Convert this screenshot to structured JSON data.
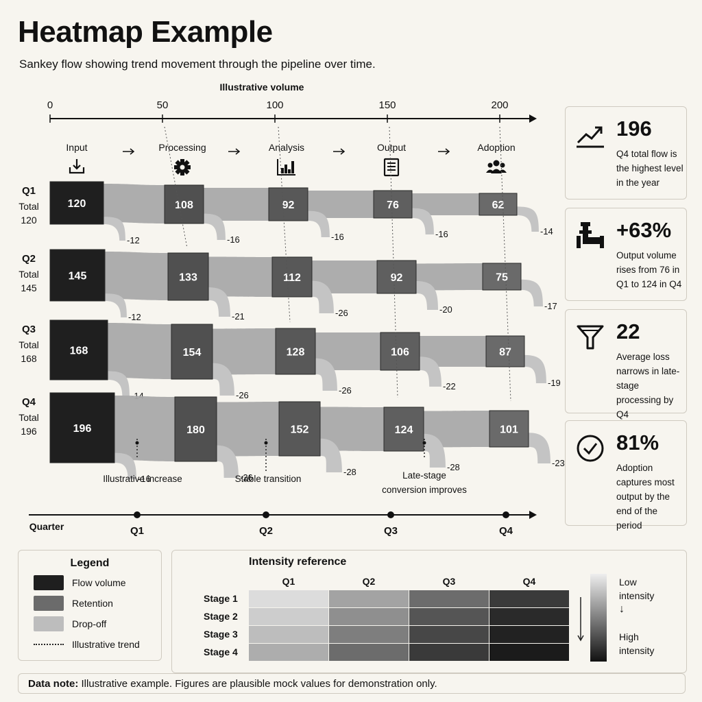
{
  "header": {
    "title": "Heatmap Example",
    "subtitle": "Sankey flow showing trend movement through the pipeline over time."
  },
  "chart_data": {
    "type": "sankey",
    "axis_title": "Illustrative volume",
    "axis_ticks": [
      0,
      50,
      100,
      150,
      200
    ],
    "xlim": [
      0,
      200
    ],
    "stages": [
      {
        "name": "Input",
        "icon": "download-icon"
      },
      {
        "name": "Processing",
        "icon": "gear-icon"
      },
      {
        "name": "Analysis",
        "icon": "bar-chart-icon"
      },
      {
        "name": "Output",
        "icon": "document-icon"
      },
      {
        "name": "Adoption",
        "icon": "people-icon"
      }
    ],
    "quarters": [
      {
        "name": "Q1",
        "total_label": "Total",
        "total": 120,
        "values": [
          120,
          108,
          92,
          76,
          62
        ],
        "losses": [
          -12,
          -16,
          -16,
          -16,
          -14
        ]
      },
      {
        "name": "Q2",
        "total_label": "Total",
        "total": 145,
        "values": [
          145,
          133,
          112,
          92,
          75
        ],
        "losses": [
          -12,
          -21,
          -26,
          -20,
          -17
        ]
      },
      {
        "name": "Q3",
        "total_label": "Total",
        "total": 168,
        "values": [
          168,
          154,
          128,
          106,
          87
        ],
        "losses": [
          -14,
          -26,
          -26,
          -22,
          -19
        ]
      },
      {
        "name": "Q4",
        "total_label": "Total",
        "total": 196,
        "values": [
          196,
          180,
          152,
          124,
          101
        ],
        "losses": [
          -16,
          -26,
          -28,
          -28,
          -23
        ]
      }
    ],
    "annotations": [
      "Illustrative increase",
      "Stable transition",
      "Late-stage conversion improves"
    ],
    "timeline": {
      "label": "Quarter",
      "points": [
        "Q1",
        "Q2",
        "Q3",
        "Q4"
      ]
    },
    "legend": [
      {
        "label": "Flow volume",
        "color": "#1f1f1f",
        "style": "solid"
      },
      {
        "label": "Retention",
        "color": "#6b6b6b",
        "style": "solid"
      },
      {
        "label": "Drop-off",
        "color": "#bdbdbd",
        "style": "solid"
      },
      {
        "label": "Illustrative trend",
        "color": "#222222",
        "style": "dotted"
      }
    ],
    "heatmap": {
      "title": "Intensity reference",
      "columns": [
        "Q1",
        "Q2",
        "Q3",
        "Q4"
      ],
      "rows": [
        "Stage 1",
        "Stage 2",
        "Stage 3",
        "Stage 4"
      ],
      "colors": [
        [
          "#dcdcdc",
          "#a3a3a3",
          "#6c6c6c",
          "#3a3a3a"
        ],
        [
          "#cdcdcd",
          "#8f8f8f",
          "#555555",
          "#2a2a2a"
        ],
        [
          "#bdbdbd",
          "#7e7e7e",
          "#474747",
          "#222222"
        ],
        [
          "#adadad",
          "#6c6c6c",
          "#3a3a3a",
          "#1b1b1b"
        ]
      ],
      "scale": {
        "low": "Low intensity",
        "high": "High intensity"
      }
    }
  },
  "cards": [
    {
      "value": "196",
      "text": "Q4 total flow is the highest level in the year",
      "icon": "trend-up-icon"
    },
    {
      "value": "+63%",
      "text": "Output volume rises from 76 in Q1 to 124 in Q4",
      "icon": "pipe-icon"
    },
    {
      "value": "22",
      "text": "Average loss narrows in late-stage processing by Q4",
      "icon": "funnel-icon"
    },
    {
      "value": "81%",
      "text": "Adoption captures most output by the end of the period",
      "icon": "check-circle-icon"
    }
  ],
  "note": {
    "label": "Data note:",
    "text": "Illustrative example. Figures are plausible mock values for demonstration only."
  }
}
